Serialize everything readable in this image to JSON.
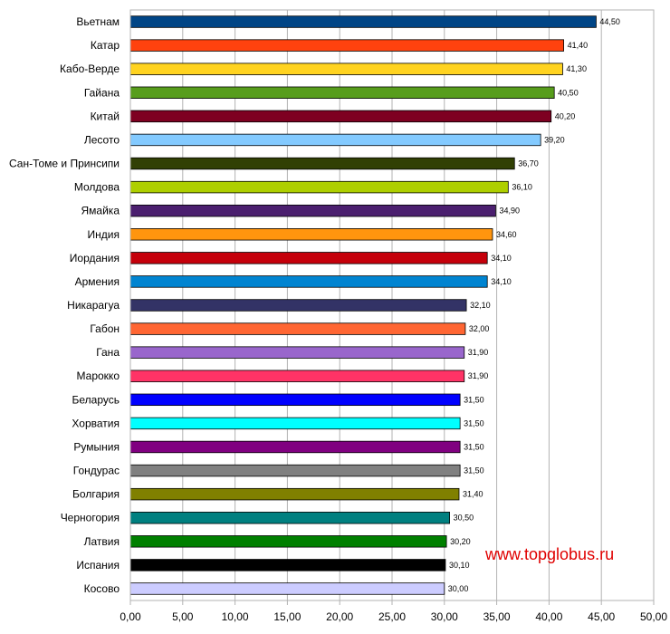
{
  "chart_data": {
    "type": "bar",
    "orientation": "horizontal",
    "title": "",
    "xlabel": "",
    "ylabel": "",
    "xlim": [
      0,
      50
    ],
    "x_ticks": [
      "0,00",
      "5,00",
      "10,00",
      "15,00",
      "20,00",
      "25,00",
      "30,00",
      "35,00",
      "40,00",
      "45,00",
      "50,00"
    ],
    "grid": "vertical",
    "legend": "none",
    "categories": [
      "Вьетнам",
      "Катар",
      "Кабо-Верде",
      "Гайана",
      "Китай",
      "Лесото",
      "Сан-Томе и Принсипи",
      "Молдова",
      "Ямайка",
      "Индия",
      "Иордания",
      "Армения",
      "Никарагуа",
      "Габон",
      "Гана",
      "Марокко",
      "Беларусь",
      "Хорватия",
      "Румыния",
      "Гондурас",
      "Болгария",
      "Черногория",
      "Латвия",
      "Испания",
      "Косово"
    ],
    "values": [
      44.5,
      41.4,
      41.3,
      40.5,
      40.2,
      39.2,
      36.7,
      36.1,
      34.9,
      34.6,
      34.1,
      34.1,
      32.1,
      32.0,
      31.9,
      31.9,
      31.5,
      31.5,
      31.5,
      31.5,
      31.4,
      30.5,
      30.2,
      30.1,
      30.0
    ],
    "value_labels": [
      "44,50",
      "41,40",
      "41,30",
      "40,50",
      "40,20",
      "39,20",
      "36,70",
      "36,10",
      "34,90",
      "34,60",
      "34,10",
      "34,10",
      "32,10",
      "32,00",
      "31,90",
      "31,90",
      "31,50",
      "31,50",
      "31,50",
      "31,50",
      "31,40",
      "30,50",
      "30,20",
      "30,10",
      "30,00"
    ],
    "colors": [
      "#004586",
      "#ff420e",
      "#ffd320",
      "#579d1c",
      "#7e0021",
      "#83caff",
      "#314004",
      "#aecf00",
      "#4b1f6f",
      "#ff950e",
      "#c5000b",
      "#0084d1",
      "#333366",
      "#ff6633",
      "#9966cc",
      "#ff3366",
      "#0000ff",
      "#00ffff",
      "#800080",
      "#808080",
      "#808000",
      "#008080",
      "#008000",
      "#000000",
      "#ccccff"
    ]
  },
  "watermark": "www.topglobus.ru"
}
